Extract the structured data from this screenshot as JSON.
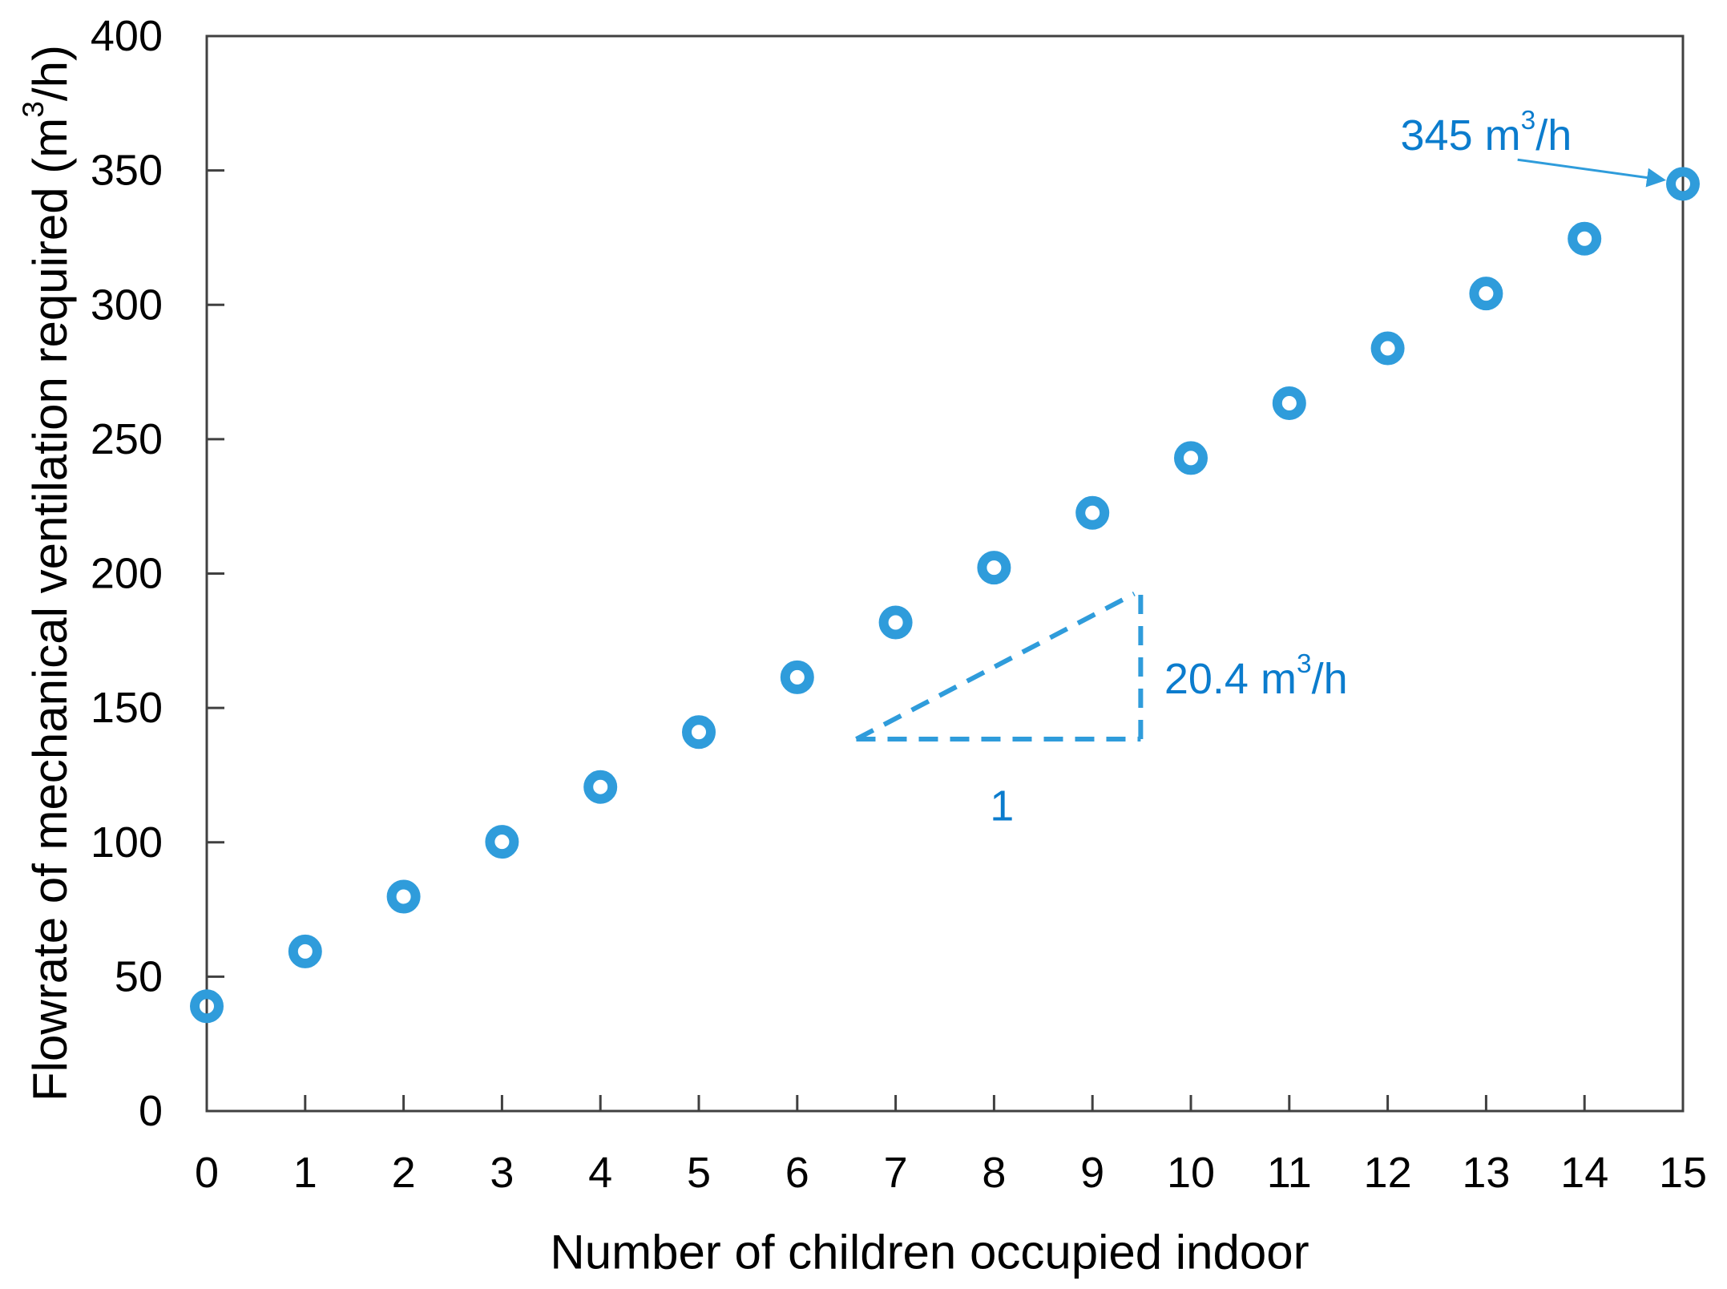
{
  "chart_data": {
    "type": "scatter",
    "title": "",
    "xlabel": "Number of children occupied indoor",
    "ylabel": "Flowrate of mechanical ventilation required (m³/h)",
    "x": [
      0,
      1,
      2,
      3,
      4,
      5,
      6,
      7,
      8,
      9,
      10,
      11,
      12,
      13,
      14,
      15
    ],
    "y": [
      39,
      59.4,
      79.8,
      100.2,
      120.6,
      141,
      161.4,
      181.8,
      202.2,
      222.6,
      243,
      263.4,
      283.8,
      304.2,
      324.6,
      345
    ],
    "xlim": [
      0,
      15
    ],
    "ylim": [
      0,
      400
    ],
    "xticks": [
      0,
      1,
      2,
      3,
      4,
      5,
      6,
      7,
      8,
      9,
      10,
      11,
      12,
      13,
      14,
      15
    ],
    "yticks": [
      0,
      50,
      100,
      150,
      200,
      250,
      300,
      350,
      400
    ],
    "grid": false,
    "marker": "open-circle",
    "slope_per_child": 20.4,
    "max_flowrate": 345,
    "colors": {
      "marker": "#2F9CDB",
      "dashed": "#2F9CDB",
      "arrow": "#2F9CDB",
      "annotation_text": "#0B7CCD",
      "axis": "#404040",
      "tick_label": "#000000"
    },
    "annotations": {
      "max_point_label": {
        "text": "345 m³/h",
        "x": 13.0,
        "y": 363,
        "arrow_from": {
          "x": 13.32,
          "y": 354
        },
        "arrow_to": {
          "x": 14.8,
          "y": 346.5
        }
      },
      "slope_triangle": {
        "x_left": 6.6,
        "x_right": 9.49,
        "y_base": 138.4,
        "y_top": 192.5,
        "rise_label": {
          "text": "20.4 m³/h",
          "x": 9.73,
          "y": 160.8
        },
        "run_label": {
          "text": "1",
          "x": 8.08,
          "y": 113.5
        }
      }
    }
  }
}
